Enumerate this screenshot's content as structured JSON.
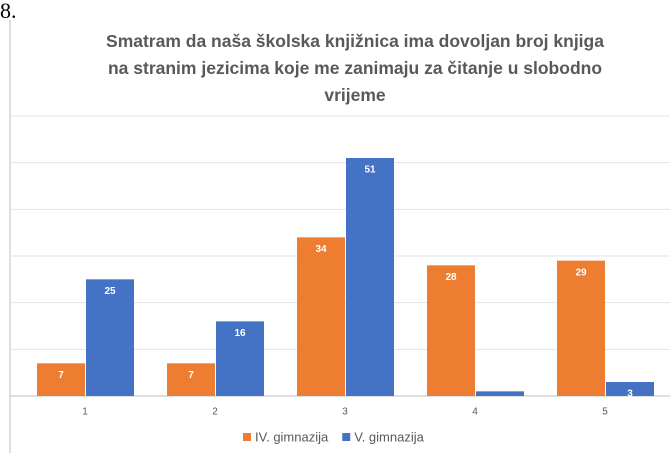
{
  "label": "8.",
  "chart_data": {
    "type": "bar",
    "title": "Smatram da naša školska knjižnica ima dovoljan broj knjiga na stranim jezicima koje me zanimaju za čitanje u slobodno vrijeme",
    "categories": [
      "1",
      "2",
      "3",
      "4",
      "5"
    ],
    "series": [
      {
        "name": "IV. gimnazija",
        "color": "#ed7d31",
        "values": [
          7,
          7,
          34,
          28,
          29
        ]
      },
      {
        "name": "V. gimnazija",
        "color": "#4472c4",
        "values": [
          25,
          16,
          51,
          1,
          3
        ],
        "value_labels": [
          "25",
          "16",
          "51",
          null,
          "3"
        ]
      }
    ],
    "ylim": [
      0,
      60
    ],
    "yticks": [
      0,
      10,
      20,
      30,
      40,
      50,
      60
    ],
    "grid": true,
    "legend": "bottom"
  }
}
